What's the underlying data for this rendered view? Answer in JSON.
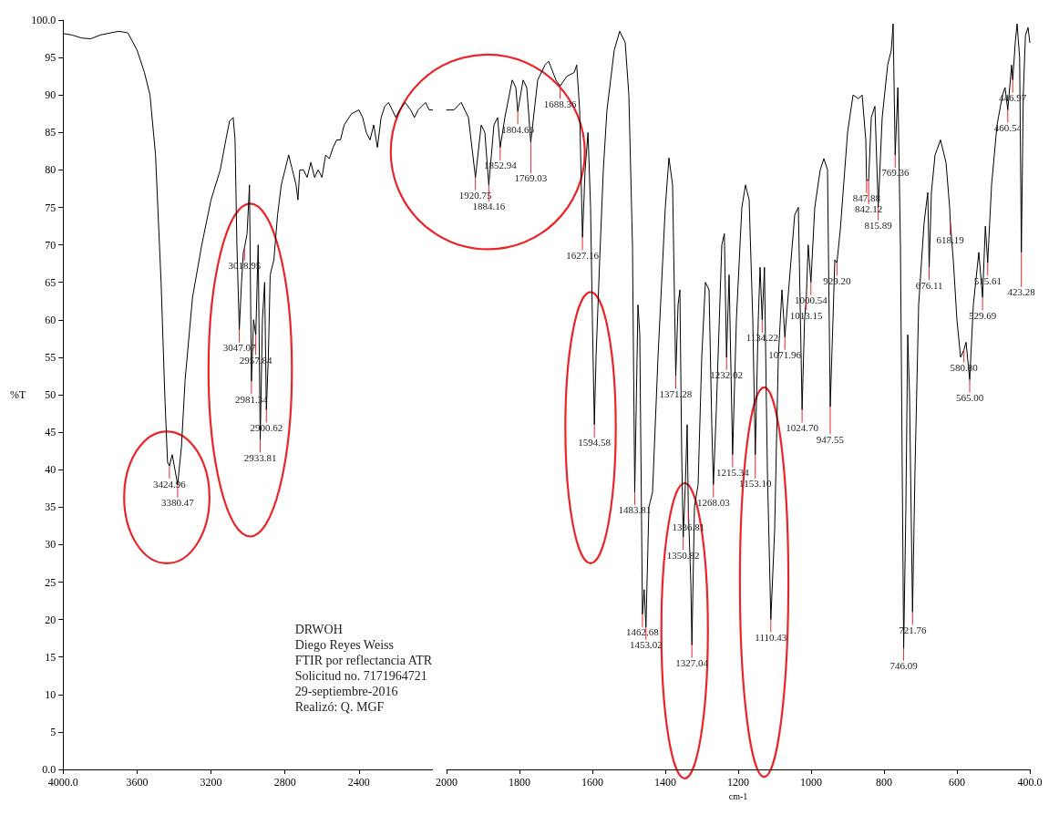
{
  "chart_data": [
    {
      "type": "line",
      "ylabel": "%T",
      "xlim": [
        4000,
        2000
      ],
      "xticks": [
        {
          "value": 4000,
          "label": "4000.0"
        },
        3600,
        3200,
        2800,
        2400
      ],
      "ylim": [
        0,
        100
      ],
      "yticks": [
        {
          "value": 0,
          "label": "0.0"
        },
        5,
        10,
        15,
        20,
        25,
        30,
        35,
        40,
        45,
        50,
        55,
        60,
        65,
        70,
        75,
        80,
        85,
        90,
        95,
        {
          "value": 100,
          "label": "100.0"
        }
      ],
      "grid": false,
      "marker": "none",
      "x": [
        4000,
        3950,
        3900,
        3850,
        3800,
        3700,
        3650,
        3600,
        3560,
        3530,
        3500,
        3470,
        3450,
        3435,
        3424.96,
        3410,
        3395,
        3380.47,
        3360,
        3340,
        3300,
        3250,
        3200,
        3150,
        3120,
        3100,
        3080,
        3070,
        3060,
        3047.07,
        3035,
        3025,
        3018.95,
        3005,
        2992,
        2981.34,
        2970,
        2957.84,
        2945,
        2933.81,
        2922,
        2910,
        2900.62,
        2890,
        2880,
        2860,
        2840,
        2820,
        2800,
        2780,
        2760,
        2740,
        2730,
        2720,
        2700,
        2680,
        2660,
        2640,
        2620,
        2600,
        2580,
        2560,
        2540,
        2520,
        2500,
        2480,
        2440,
        2400,
        2380,
        2360,
        2340,
        2320,
        2300,
        2280,
        2260,
        2240,
        2220,
        2200,
        2180,
        2150,
        2120,
        2100,
        2080,
        2060,
        2040,
        2020,
        2000
      ],
      "series": [
        {
          "color": "#000000",
          "values": [
            98.2,
            98,
            97.6,
            97.5,
            98,
            98.5,
            98.3,
            96,
            93,
            90,
            82,
            65,
            50,
            41,
            40.5,
            42,
            40,
            38,
            43,
            52,
            63,
            70,
            76,
            80,
            84,
            86.5,
            87,
            84,
            70,
            58.7,
            65,
            69,
            69.6,
            71.5,
            78,
            51.8,
            60,
            58,
            70,
            44,
            60,
            65,
            48,
            55,
            66,
            68,
            74,
            78,
            80,
            82,
            80,
            78,
            76,
            80,
            80,
            79,
            81,
            79,
            80,
            79,
            82,
            81.5,
            83,
            84,
            84,
            86,
            87.5,
            88,
            87,
            85,
            84,
            86,
            83,
            87,
            88.5,
            89,
            88,
            87,
            88,
            89,
            88,
            87,
            88,
            88.5,
            89,
            88,
            88
          ]
        }
      ],
      "annotations": [
        "DRWOH",
        "Diego Reyes Weiss",
        "FTIR por reflectancia ATR",
        "Solicitud no. 7171964721",
        "29-septiembre-2016",
        "Realizó: Q. MGF",
        {
          "text": "3424.96",
          "x": 3424.96,
          "y": 40.5
        },
        {
          "text": "3380.47",
          "x": 3380.47,
          "y": 38
        },
        {
          "text": "3047.07",
          "x": 3047.07,
          "y": 58.7
        },
        {
          "text": "3018.95",
          "x": 3018.95,
          "y": 69.6
        },
        {
          "text": "2981.34",
          "x": 2981.34,
          "y": 51.8
        },
        {
          "text": "2957.84",
          "x": 2957.84,
          "y": 58
        },
        {
          "text": "2933.81",
          "x": 2933.81,
          "y": 44
        },
        {
          "text": "2900.62",
          "x": 2900.62,
          "y": 48
        }
      ]
    },
    {
      "type": "line",
      "xlabel": "cm-1",
      "tick_labels": "x",
      "xlim": [
        2000,
        400
      ],
      "xticks": [
        2000,
        1800,
        1600,
        1400,
        1200,
        1000,
        800,
        600,
        {
          "value": 400,
          "label": "400.0"
        }
      ],
      "ylim": [
        0,
        100
      ],
      "grid": false,
      "marker": "none",
      "x": [
        2000,
        1980,
        1960,
        1940,
        1920.75,
        1905,
        1895,
        1884.16,
        1870,
        1860,
        1852.94,
        1840,
        1820,
        1810,
        1804.66,
        1790,
        1780,
        1769.03,
        1750,
        1730,
        1720,
        1700,
        1688.36,
        1670,
        1650,
        1643,
        1635,
        1627.16,
        1620,
        1612,
        1605,
        1600,
        1594.58,
        1590,
        1580,
        1570,
        1560,
        1540,
        1525,
        1510,
        1500,
        1490,
        1483.81,
        1475,
        1470,
        1462.68,
        1458,
        1453.02,
        1445,
        1435,
        1420,
        1400,
        1390,
        1380,
        1371.28,
        1365,
        1360,
        1355,
        1350.82,
        1345,
        1340,
        1336.81,
        1330,
        1327.04,
        1320,
        1310,
        1300,
        1290,
        1280,
        1272,
        1268.03,
        1260,
        1245,
        1238,
        1232.02,
        1225,
        1215.34,
        1205,
        1190,
        1180,
        1170,
        1160,
        1153.1,
        1145,
        1140,
        1134.22,
        1128,
        1120,
        1110.43,
        1100,
        1090,
        1080,
        1071.96,
        1060,
        1045,
        1035,
        1024.7,
        1018,
        1013.15,
        1008,
        1000.54,
        990,
        975,
        965,
        955,
        947.55,
        940,
        935,
        929.2,
        920,
        900,
        885,
        870,
        860,
        850,
        847.88,
        842.12,
        835,
        825,
        815.89,
        805,
        790,
        780,
        775,
        769.36,
        762,
        755,
        746.09,
        740,
        735,
        730,
        721.76,
        715,
        705,
        690,
        680,
        676.11,
        670,
        660,
        645,
        630,
        620,
        618.19,
        610,
        600,
        590,
        580.8,
        575,
        565,
        555,
        540,
        529.69,
        522,
        515.61,
        505,
        490,
        475,
        468,
        460.54,
        450,
        446.97,
        440,
        435,
        428,
        423.28,
        418,
        412,
        405,
        400
      ],
      "series": [
        {
          "color": "#000000",
          "values": [
            88,
            88,
            89,
            87,
            79,
            86,
            85,
            78,
            86,
            87,
            83,
            87,
            92,
            91,
            87.8,
            92,
            91,
            83.7,
            92,
            94,
            94.5,
            92,
            91.2,
            92.5,
            93,
            94,
            88,
            71,
            80,
            85,
            75,
            60,
            46,
            55,
            68,
            80,
            88,
            96,
            98.5,
            97,
            90,
            70,
            37,
            62,
            58,
            20.7,
            24,
            19,
            35,
            37,
            55,
            75,
            81.6,
            78,
            52.5,
            62,
            64,
            42,
            31,
            38,
            46,
            34.7,
            25,
            16.6,
            35,
            38,
            55,
            65,
            64,
            45,
            38,
            48,
            70,
            71.5,
            55,
            66,
            42,
            60,
            75,
            78,
            76,
            60,
            42,
            60,
            67,
            60,
            67,
            40,
            20,
            32,
            55,
            64,
            57.7,
            65,
            74,
            75,
            48,
            60,
            63,
            70,
            65,
            75,
            80,
            81.5,
            80,
            48.4,
            60,
            68,
            67.6,
            72,
            85,
            90,
            89.5,
            90,
            84,
            78.6,
            78.6,
            87,
            88.5,
            75,
            87,
            94,
            96,
            99.5,
            82,
            91,
            70,
            16.2,
            35,
            58,
            50,
            21,
            40,
            62,
            73,
            77,
            67,
            77,
            82,
            84,
            81,
            75,
            73,
            68,
            60,
            55,
            56,
            57,
            52,
            62,
            69,
            63,
            72.5,
            67.6,
            78,
            86,
            90,
            91,
            88,
            94,
            92,
            97,
            99.5,
            95,
            69,
            90,
            98,
            99,
            97
          ]
        }
      ],
      "annotations": [
        {
          "text": "1920.75",
          "x": 1920.75,
          "y": 79
        },
        {
          "text": "1884.16",
          "x": 1884.16,
          "y": 78
        },
        {
          "text": "1852.94",
          "x": 1852.94,
          "y": 83
        },
        {
          "text": "1804.66",
          "x": 1804.66,
          "y": 87.8
        },
        {
          "text": "1769.03",
          "x": 1769.03,
          "y": 83.7
        },
        {
          "text": "1688.36",
          "x": 1688.36,
          "y": 91.2
        },
        {
          "text": "1627.16",
          "x": 1627.16,
          "y": 71
        },
        {
          "text": "1594.58",
          "x": 1594.58,
          "y": 46
        },
        {
          "text": "1483.81",
          "x": 1483.81,
          "y": 37
        },
        {
          "text": "1462.68",
          "x": 1462.68,
          "y": 20.7
        },
        {
          "text": "1453.02",
          "x": 1453.02,
          "y": 19
        },
        {
          "text": "1371.28",
          "x": 1371.28,
          "y": 52.5
        },
        {
          "text": "1350.82",
          "x": 1350.82,
          "y": 31
        },
        {
          "text": "1336.81",
          "x": 1336.81,
          "y": 34.7
        },
        {
          "text": "1327.04",
          "x": 1327.04,
          "y": 16.6
        },
        {
          "text": "1268.03",
          "x": 1268.03,
          "y": 38
        },
        {
          "text": "1232.02",
          "x": 1232.02,
          "y": 55
        },
        {
          "text": "1215.34",
          "x": 1215.34,
          "y": 42
        },
        {
          "text": "1153.10",
          "x": 1153.1,
          "y": 42
        },
        {
          "text": "1134.22",
          "x": 1134.22,
          "y": 60
        },
        {
          "text": "1110.43",
          "x": 1110.43,
          "y": 20
        },
        {
          "text": "1071.96",
          "x": 1071.96,
          "y": 57.7
        },
        {
          "text": "1024.70",
          "x": 1024.7,
          "y": 48
        },
        {
          "text": "1013.15",
          "x": 1013.15,
          "y": 63
        },
        {
          "text": "1000.54",
          "x": 1000.54,
          "y": 65
        },
        {
          "text": "947.55",
          "x": 947.55,
          "y": 48.4
        },
        {
          "text": "929.20",
          "x": 929.2,
          "y": 67.6
        },
        {
          "text": "847.88",
          "x": 847.88,
          "y": 78.6
        },
        {
          "text": "842.12",
          "x": 842.12,
          "y": 78.6
        },
        {
          "text": "815.89",
          "x": 815.89,
          "y": 75
        },
        {
          "text": "769.36",
          "x": 769.36,
          "y": 82
        },
        {
          "text": "746.09",
          "x": 746.09,
          "y": 16.2
        },
        {
          "text": "721.76",
          "x": 721.76,
          "y": 21
        },
        {
          "text": "676.11",
          "x": 676.11,
          "y": 67
        },
        {
          "text": "618.19",
          "x": 618.19,
          "y": 73
        },
        {
          "text": "580.80",
          "x": 580.8,
          "y": 56
        },
        {
          "text": "565.00",
          "x": 565,
          "y": 52
        },
        {
          "text": "529.69",
          "x": 529.69,
          "y": 63
        },
        {
          "text": "515.61",
          "x": 515.61,
          "y": 67.6
        },
        {
          "text": "460.54",
          "x": 460.54,
          "y": 88
        },
        {
          "text": "446.97",
          "x": 446.97,
          "y": 92
        },
        {
          "text": "423.28",
          "x": 423.28,
          "y": 69
        }
      ]
    }
  ]
}
